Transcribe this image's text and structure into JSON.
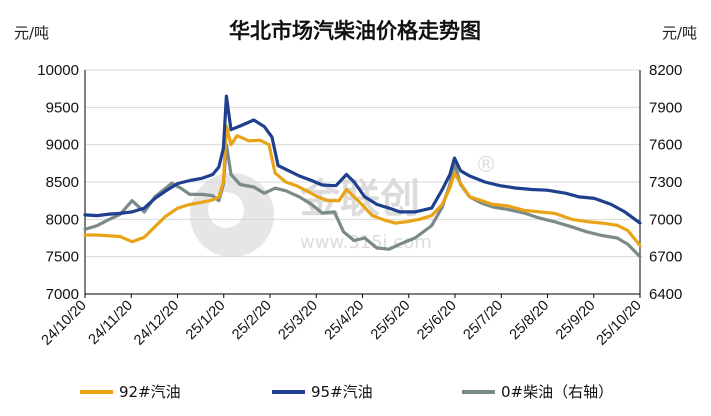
{
  "chart_data": {
    "type": "line",
    "title": "华北市场汽柴油价格走势图",
    "y_left_unit": "元/吨",
    "y_right_unit": "元/吨",
    "y_left_range": [
      7000,
      10000
    ],
    "y_left_ticks": [
      "7000",
      "7500",
      "8000",
      "8500",
      "9000",
      "9500",
      "10000"
    ],
    "y_right_range": [
      6400,
      8200
    ],
    "y_right_ticks": [
      "6400",
      "6700",
      "7000",
      "7300",
      "7600",
      "7900",
      "8200"
    ],
    "x_range": [
      "2024-10-20",
      "2025-10-20"
    ],
    "x_ticks": [
      "24/10/20",
      "24/11/20",
      "24/12/20",
      "25/1/20",
      "25/2/20",
      "25/3/20",
      "25/4/20",
      "25/5/20",
      "25/6/20",
      "25/7/20",
      "25/8/20",
      "25/9/20",
      "25/10/20"
    ],
    "grid": true,
    "legend_position": "bottom",
    "watermark": "金联创 www.315i.com",
    "series": [
      {
        "name": "92#汽油",
        "axis": "left",
        "color": "#E8A317",
        "points": [
          [
            "2024-10-20",
            7790
          ],
          [
            "2024-10-28",
            7790
          ],
          [
            "2024-11-05",
            7780
          ],
          [
            "2024-11-12",
            7770
          ],
          [
            "2024-11-20",
            7700
          ],
          [
            "2024-11-28",
            7760
          ],
          [
            "2024-12-05",
            7900
          ],
          [
            "2024-12-12",
            8040
          ],
          [
            "2024-12-20",
            8150
          ],
          [
            "2024-12-28",
            8200
          ],
          [
            "2025-01-05",
            8230
          ],
          [
            "2025-01-12",
            8260
          ],
          [
            "2025-01-16",
            8300
          ],
          [
            "2025-01-19",
            8500
          ],
          [
            "2025-01-21",
            9250
          ],
          [
            "2025-01-24",
            9000
          ],
          [
            "2025-01-28",
            9120
          ],
          [
            "2025-02-05",
            9050
          ],
          [
            "2025-02-12",
            9060
          ],
          [
            "2025-02-18",
            9000
          ],
          [
            "2025-02-22",
            8620
          ],
          [
            "2025-03-01",
            8500
          ],
          [
            "2025-03-08",
            8450
          ],
          [
            "2025-03-15",
            8380
          ],
          [
            "2025-03-22",
            8300
          ],
          [
            "2025-03-29",
            8250
          ],
          [
            "2025-04-05",
            8250
          ],
          [
            "2025-04-10",
            8400
          ],
          [
            "2025-04-15",
            8300
          ],
          [
            "2025-04-20",
            8200
          ],
          [
            "2025-04-27",
            8050
          ],
          [
            "2025-05-05",
            7990
          ],
          [
            "2025-05-12",
            7950
          ],
          [
            "2025-05-20",
            7970
          ],
          [
            "2025-05-28",
            8000
          ],
          [
            "2025-06-05",
            8050
          ],
          [
            "2025-06-12",
            8200
          ],
          [
            "2025-06-17",
            8420
          ],
          [
            "2025-06-20",
            8620
          ],
          [
            "2025-06-24",
            8480
          ],
          [
            "2025-06-30",
            8300
          ],
          [
            "2025-07-08",
            8250
          ],
          [
            "2025-07-15",
            8200
          ],
          [
            "2025-07-25",
            8180
          ],
          [
            "2025-08-05",
            8120
          ],
          [
            "2025-08-15",
            8100
          ],
          [
            "2025-08-25",
            8080
          ],
          [
            "2025-09-05",
            8000
          ],
          [
            "2025-09-15",
            7970
          ],
          [
            "2025-09-25",
            7950
          ],
          [
            "2025-10-05",
            7920
          ],
          [
            "2025-10-12",
            7850
          ],
          [
            "2025-10-20",
            7650
          ]
        ]
      },
      {
        "name": "95#汽油",
        "axis": "left",
        "color": "#1F3F8F",
        "points": [
          [
            "2024-10-20",
            8060
          ],
          [
            "2024-10-28",
            8050
          ],
          [
            "2024-11-05",
            8070
          ],
          [
            "2024-11-12",
            8080
          ],
          [
            "2024-11-20",
            8100
          ],
          [
            "2024-11-28",
            8150
          ],
          [
            "2024-12-05",
            8280
          ],
          [
            "2024-12-12",
            8380
          ],
          [
            "2024-12-20",
            8480
          ],
          [
            "2024-12-28",
            8520
          ],
          [
            "2025-01-05",
            8550
          ],
          [
            "2025-01-12",
            8600
          ],
          [
            "2025-01-16",
            8700
          ],
          [
            "2025-01-19",
            8950
          ],
          [
            "2025-01-21",
            9650
          ],
          [
            "2025-01-24",
            9200
          ],
          [
            "2025-01-30",
            9250
          ],
          [
            "2025-02-08",
            9330
          ],
          [
            "2025-02-15",
            9240
          ],
          [
            "2025-02-20",
            9100
          ],
          [
            "2025-02-24",
            8720
          ],
          [
            "2025-03-03",
            8650
          ],
          [
            "2025-03-10",
            8580
          ],
          [
            "2025-03-18",
            8520
          ],
          [
            "2025-03-25",
            8460
          ],
          [
            "2025-04-03",
            8450
          ],
          [
            "2025-04-10",
            8600
          ],
          [
            "2025-04-15",
            8500
          ],
          [
            "2025-04-22",
            8300
          ],
          [
            "2025-04-30",
            8200
          ],
          [
            "2025-05-08",
            8150
          ],
          [
            "2025-05-15",
            8100
          ],
          [
            "2025-05-25",
            8100
          ],
          [
            "2025-06-05",
            8150
          ],
          [
            "2025-06-12",
            8400
          ],
          [
            "2025-06-17",
            8600
          ],
          [
            "2025-06-20",
            8820
          ],
          [
            "2025-06-24",
            8650
          ],
          [
            "2025-06-30",
            8580
          ],
          [
            "2025-07-10",
            8500
          ],
          [
            "2025-07-20",
            8450
          ],
          [
            "2025-07-30",
            8420
          ],
          [
            "2025-08-10",
            8400
          ],
          [
            "2025-08-20",
            8390
          ],
          [
            "2025-09-01",
            8350
          ],
          [
            "2025-09-10",
            8300
          ],
          [
            "2025-09-20",
            8280
          ],
          [
            "2025-10-01",
            8200
          ],
          [
            "2025-10-10",
            8100
          ],
          [
            "2025-10-20",
            7950
          ]
        ]
      },
      {
        "name": "0#柴油（右轴）",
        "axis": "right",
        "color": "#7A8A88",
        "points": [
          [
            "2024-10-20",
            6920
          ],
          [
            "2024-10-28",
            6950
          ],
          [
            "2024-11-05",
            7000
          ],
          [
            "2024-11-12",
            7040
          ],
          [
            "2024-11-20",
            7150
          ],
          [
            "2024-11-28",
            7060
          ],
          [
            "2024-12-05",
            7180
          ],
          [
            "2024-12-12",
            7250
          ],
          [
            "2024-12-16",
            7290
          ],
          [
            "2024-12-22",
            7250
          ],
          [
            "2024-12-28",
            7200
          ],
          [
            "2025-01-05",
            7200
          ],
          [
            "2025-01-12",
            7190
          ],
          [
            "2025-01-16",
            7150
          ],
          [
            "2025-01-19",
            7280
          ],
          [
            "2025-01-21",
            7600
          ],
          [
            "2025-01-24",
            7360
          ],
          [
            "2025-01-30",
            7280
          ],
          [
            "2025-02-08",
            7260
          ],
          [
            "2025-02-15",
            7210
          ],
          [
            "2025-02-22",
            7250
          ],
          [
            "2025-03-01",
            7230
          ],
          [
            "2025-03-10",
            7180
          ],
          [
            "2025-03-18",
            7120
          ],
          [
            "2025-03-25",
            7050
          ],
          [
            "2025-04-02",
            7060
          ],
          [
            "2025-04-08",
            6900
          ],
          [
            "2025-04-15",
            6830
          ],
          [
            "2025-04-22",
            6850
          ],
          [
            "2025-04-30",
            6770
          ],
          [
            "2025-05-08",
            6760
          ],
          [
            "2025-05-15",
            6800
          ],
          [
            "2025-05-25",
            6850
          ],
          [
            "2025-06-05",
            6950
          ],
          [
            "2025-06-12",
            7100
          ],
          [
            "2025-06-17",
            7280
          ],
          [
            "2025-06-20",
            7450
          ],
          [
            "2025-06-24",
            7280
          ],
          [
            "2025-06-30",
            7180
          ],
          [
            "2025-07-08",
            7130
          ],
          [
            "2025-07-15",
            7100
          ],
          [
            "2025-07-25",
            7080
          ],
          [
            "2025-08-05",
            7050
          ],
          [
            "2025-08-15",
            7010
          ],
          [
            "2025-08-25",
            6980
          ],
          [
            "2025-09-05",
            6940
          ],
          [
            "2025-09-15",
            6900
          ],
          [
            "2025-09-25",
            6870
          ],
          [
            "2025-10-05",
            6850
          ],
          [
            "2025-10-12",
            6800
          ],
          [
            "2025-10-20",
            6700
          ]
        ]
      }
    ]
  }
}
